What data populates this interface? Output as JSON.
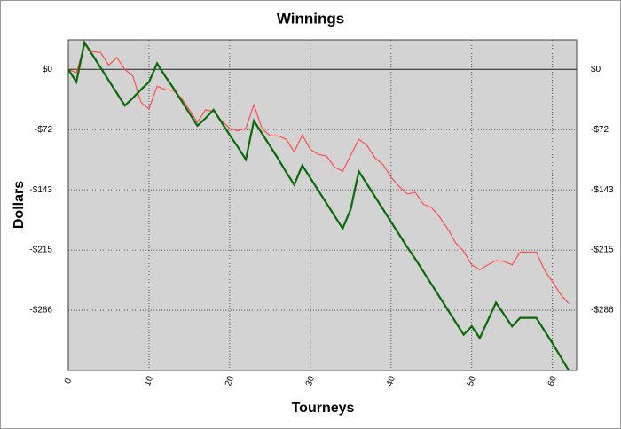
{
  "chart_data": {
    "type": "line",
    "title": "Winnings",
    "x_label": "Tourneys",
    "y_label": "Dollars",
    "x": [
      0,
      1,
      2,
      3,
      4,
      5,
      6,
      7,
      8,
      9,
      10,
      11,
      12,
      13,
      14,
      15,
      16,
      17,
      18,
      19,
      20,
      21,
      22,
      23,
      24,
      25,
      26,
      27,
      28,
      29,
      30,
      31,
      32,
      33,
      34,
      35,
      36,
      37,
      38,
      39,
      40,
      41,
      42,
      43,
      44,
      45,
      46,
      47,
      48,
      49,
      50,
      51,
      52,
      53,
      54,
      55,
      56,
      57,
      58,
      59,
      60,
      61,
      62
    ],
    "series": [
      {
        "color": "#ff4d4d",
        "width": 1.2,
        "values": [
          0,
          -4,
          29,
          21,
          20,
          5,
          14,
          0,
          -8,
          -39,
          -47,
          -20,
          -24,
          -25,
          -34,
          -48,
          -63,
          -48,
          -50,
          -61,
          -70,
          -73,
          -70,
          -42,
          -70,
          -79,
          -79,
          -83,
          -98,
          -78,
          -95,
          -101,
          -103,
          -116,
          -121,
          -102,
          -83,
          -90,
          -105,
          -113,
          -128,
          -139,
          -148,
          -146,
          -160,
          -164,
          -175,
          -189,
          -206,
          -216,
          -232,
          -238,
          -232,
          -227,
          -228,
          -232,
          -217,
          -217,
          -217,
          -238,
          -252,
          -267,
          -278
        ]
      },
      {
        "color": "#0a6a0a",
        "width": 2.2,
        "values": [
          0,
          -15,
          32,
          17,
          2,
          -13,
          -28,
          -43,
          -34,
          -24,
          -15,
          7,
          -8,
          -22,
          -37,
          -52,
          -67,
          -58,
          -48,
          -63,
          -78,
          -92,
          -107,
          -61,
          -76,
          -91,
          -106,
          -122,
          -137,
          -114,
          -129,
          -144,
          -159,
          -174,
          -189,
          -166,
          -121,
          -136,
          -151,
          -166,
          -181,
          -196,
          -211,
          -225,
          -240,
          -255,
          -270,
          -285,
          -300,
          -315,
          -305,
          -319,
          -298,
          -277,
          -291,
          -305,
          -295,
          -295,
          -295,
          -310,
          -325,
          -341,
          -357
        ]
      }
    ],
    "xlim": [
      0,
      63
    ],
    "xticks": [
      0,
      10,
      20,
      30,
      40,
      50,
      60
    ],
    "ylim": [
      -357.5,
      35
    ],
    "yticks": [
      {
        "value": 0,
        "label": "$0"
      },
      {
        "value": -71.5,
        "label": "-$72"
      },
      {
        "value": -143,
        "label": "-$143"
      },
      {
        "value": -214.5,
        "label": "-$215"
      },
      {
        "value": -286,
        "label": "-$286"
      }
    ],
    "grid": true,
    "background": "#d3d3d3"
  }
}
